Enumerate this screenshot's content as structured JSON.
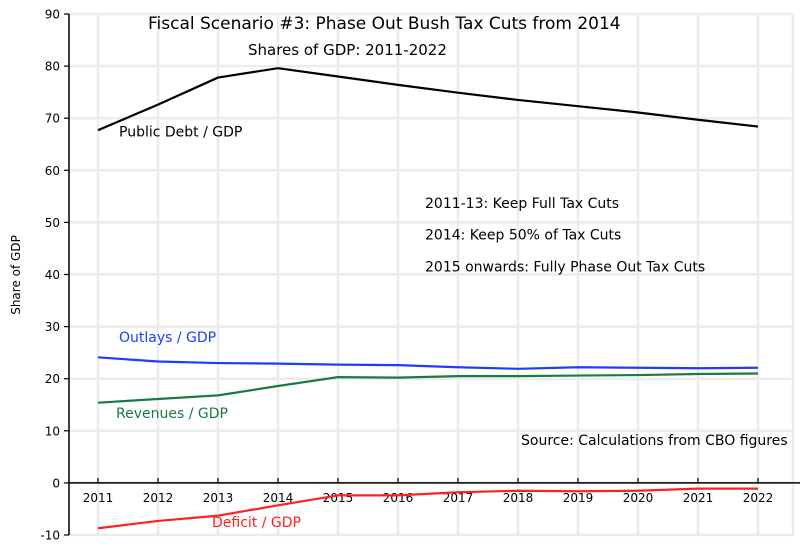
{
  "chart_data": {
    "type": "line",
    "title": "Fiscal Scenario #3:  Phase Out Bush Tax Cuts from 2014",
    "subtitle": "Shares of GDP: 2011-2022",
    "xlabel": "",
    "ylabel": "Share of GDP",
    "x": [
      2011,
      2012,
      2013,
      2014,
      2015,
      2016,
      2017,
      2018,
      2019,
      2020,
      2021,
      2022
    ],
    "x_tick_labels": [
      "2011",
      "2012",
      "2013",
      "2014",
      "2015",
      "2016",
      "2017",
      "2018",
      "2019",
      "2020",
      "2021",
      "2022"
    ],
    "ylim": [
      -10,
      90
    ],
    "y_ticks": [
      -10,
      0,
      10,
      20,
      30,
      40,
      50,
      60,
      70,
      80,
      90
    ],
    "y_tick_labels": [
      "-10",
      "0",
      "10",
      "20",
      "30",
      "40",
      "50",
      "60",
      "70",
      "80",
      "90"
    ],
    "grid": true,
    "series": [
      {
        "name": "Public Debt / GDP",
        "color": "#000000",
        "label_at": [
          2011.35,
          66.5
        ],
        "values": [
          67.7,
          72.6,
          77.8,
          79.6,
          78.0,
          76.4,
          74.9,
          73.5,
          72.3,
          71.1,
          69.7,
          68.4
        ]
      },
      {
        "name": "Outlays / GDP",
        "color": "#1f3bff",
        "label_at": [
          2011.35,
          27.0
        ],
        "values": [
          24.1,
          23.3,
          23.0,
          22.9,
          22.7,
          22.6,
          22.2,
          21.9,
          22.2,
          22.1,
          22.0,
          22.1
        ]
      },
      {
        "name": "Revenues / GDP",
        "color": "#1a7a45",
        "label_at": [
          2011.3,
          12.5
        ],
        "values": [
          15.4,
          16.1,
          16.8,
          18.6,
          20.3,
          20.2,
          20.5,
          20.5,
          20.6,
          20.7,
          20.9,
          21.0
        ]
      },
      {
        "name": "Deficit / GDP",
        "color": "#ff2020",
        "label_at": [
          2012.9,
          -8.5
        ],
        "values": [
          -8.7,
          -7.3,
          -6.3,
          -4.3,
          -2.4,
          -2.4,
          -1.8,
          -1.5,
          -1.6,
          -1.5,
          -1.1,
          -1.1
        ]
      }
    ],
    "annotations": [
      {
        "text": "2011-13:  Keep Full Tax Cuts",
        "at": [
          2016.45,
          52.8
        ]
      },
      {
        "text": "2014:  Keep 50% of Tax Cuts",
        "at": [
          2016.45,
          46.7
        ]
      },
      {
        "text": "2015 onwards:  Fully Phase Out Tax Cuts",
        "at": [
          2016.45,
          40.6
        ]
      },
      {
        "text": "Source:  Calculations from CBO figures",
        "at": [
          2018.05,
          7.3
        ]
      }
    ]
  }
}
